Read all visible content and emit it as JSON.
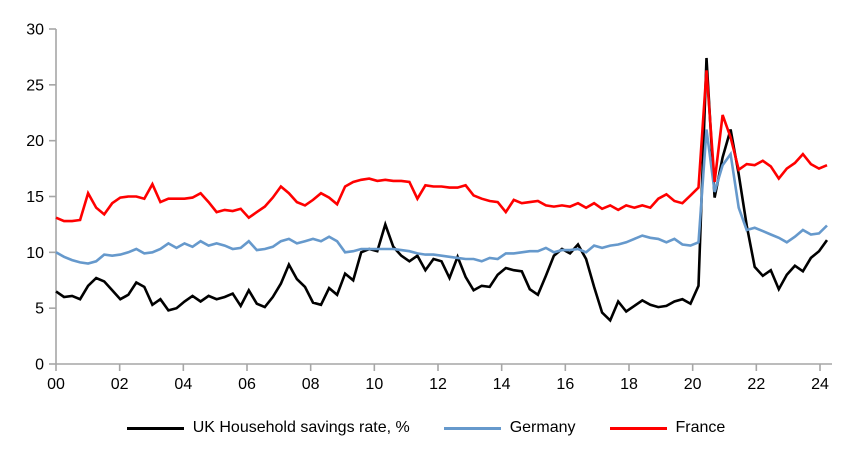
{
  "colors": {
    "axis": "#a6a6a6",
    "text": "#000000",
    "background": "#ffffff",
    "uk_line": "#000000",
    "germany_line": "#6699cc",
    "france_line": "#ff0000"
  },
  "chart_data": {
    "type": "line",
    "title": "",
    "xlabel": "",
    "ylabel": "",
    "grid": false,
    "legend_position": "bottom",
    "ylim": [
      0,
      30
    ],
    "y_ticks": [
      0,
      5,
      10,
      15,
      20,
      25,
      30
    ],
    "x_tick_labels": [
      "00",
      "02",
      "04",
      "06",
      "08",
      "10",
      "12",
      "14",
      "16",
      "18",
      "20",
      "22",
      "24"
    ],
    "x_frequency": "quarterly",
    "x_range": "2000Q1-2024Q1",
    "series": [
      {
        "name": "UK Household savings rate, %",
        "color": "#000000",
        "values": [
          6.5,
          6.0,
          6.1,
          5.8,
          7.0,
          7.7,
          7.4,
          6.6,
          5.8,
          6.2,
          7.3,
          6.9,
          5.3,
          5.8,
          4.8,
          5.0,
          5.6,
          6.1,
          5.6,
          6.1,
          5.8,
          6.0,
          6.3,
          5.2,
          6.6,
          5.4,
          5.1,
          6.0,
          7.2,
          8.9,
          7.6,
          6.9,
          5.5,
          5.3,
          6.8,
          6.2,
          8.1,
          7.5,
          10.0,
          10.3,
          10.1,
          12.5,
          10.5,
          9.7,
          9.2,
          9.7,
          8.4,
          9.4,
          9.2,
          7.7,
          9.6,
          7.8,
          6.6,
          7.0,
          6.9,
          8.0,
          8.6,
          8.4,
          8.3,
          6.7,
          6.2,
          7.9,
          9.7,
          10.3,
          9.9,
          10.7,
          9.4,
          6.9,
          4.6,
          3.9,
          5.6,
          4.7,
          5.2,
          5.7,
          5.3,
          5.1,
          5.2,
          5.6,
          5.8,
          5.4,
          7.0,
          27.4,
          14.9,
          18.5,
          21.0,
          17.0,
          12.4,
          8.7,
          7.9,
          8.4,
          6.7,
          8.0,
          8.8,
          8.3,
          9.5,
          10.1,
          11.1
        ]
      },
      {
        "name": "Germany",
        "color": "#6699cc",
        "values": [
          10.0,
          9.6,
          9.3,
          9.1,
          9.0,
          9.2,
          9.8,
          9.7,
          9.8,
          10.0,
          10.3,
          9.9,
          10.0,
          10.3,
          10.8,
          10.4,
          10.8,
          10.5,
          11.0,
          10.6,
          10.8,
          10.6,
          10.3,
          10.4,
          11.0,
          10.2,
          10.3,
          10.5,
          11.0,
          11.2,
          10.8,
          11.0,
          11.2,
          11.0,
          11.4,
          11.0,
          10.0,
          10.1,
          10.3,
          10.3,
          10.3,
          10.3,
          10.3,
          10.2,
          10.1,
          9.9,
          9.8,
          9.8,
          9.7,
          9.6,
          9.5,
          9.4,
          9.4,
          9.2,
          9.5,
          9.4,
          9.9,
          9.9,
          10.0,
          10.1,
          10.1,
          10.4,
          10.0,
          10.2,
          10.2,
          10.3,
          10.0,
          10.6,
          10.4,
          10.6,
          10.7,
          10.9,
          11.2,
          11.5,
          11.3,
          11.2,
          10.9,
          11.2,
          10.7,
          10.6,
          10.9,
          21.0,
          15.4,
          17.8,
          18.8,
          14.0,
          12.0,
          12.2,
          11.9,
          11.6,
          11.3,
          10.9,
          11.4,
          12.0,
          11.6,
          11.7,
          12.4
        ]
      },
      {
        "name": "France",
        "color": "#ff0000",
        "values": [
          13.1,
          12.8,
          12.8,
          12.9,
          15.3,
          14.0,
          13.4,
          14.4,
          14.9,
          15.0,
          15.0,
          14.8,
          16.1,
          14.5,
          14.8,
          14.8,
          14.8,
          14.9,
          15.3,
          14.5,
          13.6,
          13.8,
          13.7,
          13.9,
          13.1,
          13.6,
          14.1,
          14.9,
          15.9,
          15.3,
          14.5,
          14.2,
          14.7,
          15.3,
          14.9,
          14.3,
          15.9,
          16.3,
          16.5,
          16.6,
          16.4,
          16.5,
          16.4,
          16.4,
          16.3,
          14.8,
          16.0,
          15.9,
          15.9,
          15.8,
          15.8,
          16.0,
          15.1,
          14.8,
          14.6,
          14.5,
          13.6,
          14.7,
          14.4,
          14.5,
          14.6,
          14.2,
          14.1,
          14.2,
          14.1,
          14.4,
          14.0,
          14.4,
          13.9,
          14.2,
          13.8,
          14.2,
          14.0,
          14.2,
          14.0,
          14.8,
          15.2,
          14.6,
          14.4,
          15.1,
          15.8,
          26.3,
          16.3,
          22.3,
          20.3,
          17.4,
          17.9,
          17.8,
          18.2,
          17.7,
          16.6,
          17.5,
          18.0,
          18.8,
          17.9,
          17.5,
          17.8
        ]
      }
    ]
  }
}
